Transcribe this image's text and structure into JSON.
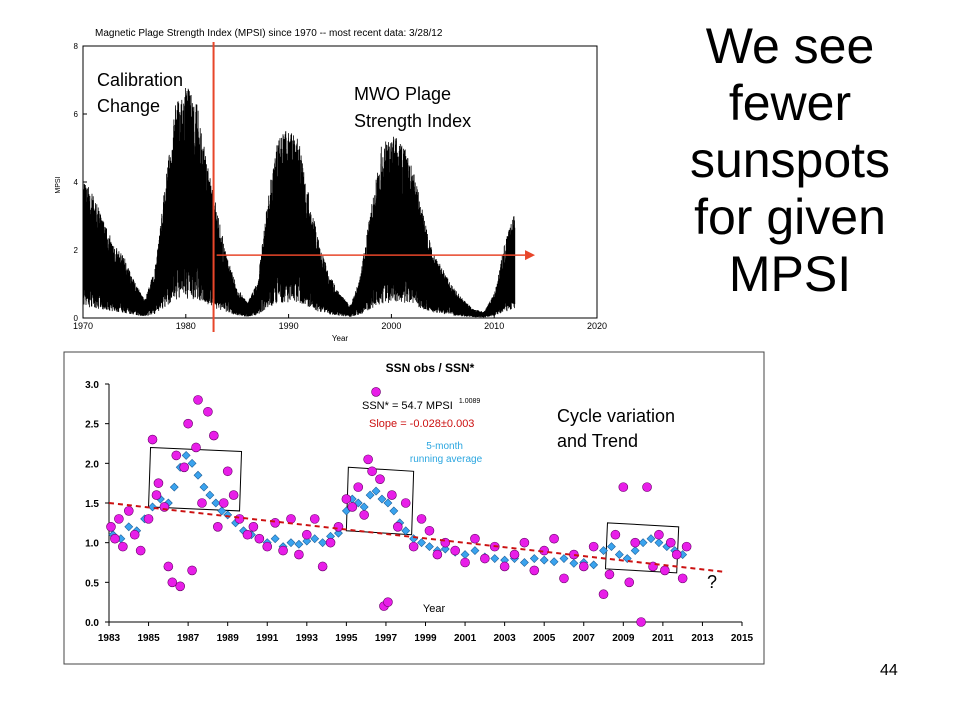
{
  "slide": {
    "title_lines": [
      "We see",
      "fewer",
      "sunspots",
      "for given",
      "MPSI"
    ],
    "page_number": "44"
  },
  "chart_data": [
    {
      "type": "line",
      "title": "Magnetic Plage Strength Index (MPSI) since 1970 -- most recent data: 3/28/12",
      "xlabel": "Year",
      "ylabel": "MPSI",
      "xlim": [
        1970,
        2020
      ],
      "ylim": [
        0,
        8
      ],
      "xticks": [
        "1970",
        "1980",
        "1990",
        "2000",
        "2010",
        "2020"
      ],
      "yticks": [
        "0",
        "2",
        "4",
        "6",
        "8"
      ],
      "grid": false,
      "annotations": {
        "calibration": [
          "Calibration",
          "Change"
        ],
        "plage": [
          "MWO Plage",
          "Strength Index"
        ]
      },
      "calibration_change_year": 1982.7,
      "reference_level": 1.85,
      "reference_line_x": [
        1983,
        2013
      ],
      "series": [
        {
          "x": [
            1970,
            1971,
            1972,
            1973,
            1974,
            1975,
            1976,
            1977,
            1978,
            1979,
            1980,
            1981,
            1982,
            1983,
            1984,
            1985,
            1986,
            1987,
            1988,
            1989,
            1990,
            1991,
            1992,
            1993,
            1994,
            1995,
            1996,
            1997,
            1998,
            1999,
            2000,
            2001,
            2002,
            2003,
            2004,
            2005,
            2006,
            2007,
            2008,
            2009,
            2010,
            2011,
            2012
          ],
          "values": [
            2.3,
            2.0,
            1.6,
            1.2,
            1.0,
            0.6,
            0.3,
            0.8,
            2.2,
            3.5,
            3.8,
            3.6,
            2.6,
            1.8,
            1.0,
            0.5,
            0.25,
            0.6,
            2.0,
            3.0,
            3.1,
            2.9,
            2.0,
            1.2,
            0.7,
            0.4,
            0.2,
            0.7,
            1.8,
            2.8,
            3.0,
            2.9,
            2.5,
            1.8,
            1.1,
            0.8,
            0.5,
            0.3,
            0.15,
            0.1,
            0.4,
            1.2,
            1.8
          ],
          "color": "#000000"
        }
      ],
      "colors": {
        "reference": "#e8462a",
        "calibration": "#e8462a"
      }
    },
    {
      "type": "scatter",
      "title": "SSN obs / SSN*",
      "xlabel": "Year",
      "ylabel": "",
      "xlim": [
        1983,
        2015
      ],
      "ylim": [
        0,
        3
      ],
      "xticks": [
        "1983",
        "1985",
        "1987",
        "1989",
        "1991",
        "1993",
        "1995",
        "1997",
        "1999",
        "2001",
        "2003",
        "2005",
        "2007",
        "2009",
        "2011",
        "2013",
        "2015"
      ],
      "yticks": [
        "0.0",
        "0.5",
        "1.0",
        "1.5",
        "2.0",
        "2.5",
        "3.0"
      ],
      "grid": false,
      "annotations": {
        "formula": "SSN* = 54.7 MPSI",
        "formula_exponent": "1.0089",
        "slope": "Slope = -0.028±0.003",
        "running_average": [
          "5-month",
          "running average"
        ],
        "cycle": [
          "Cycle variation",
          "and Trend"
        ],
        "question": "?"
      },
      "trend": {
        "x": [
          1983,
          2014.2
        ],
        "y": [
          1.5,
          0.63
        ]
      },
      "boxes": [
        {
          "x": [
            1985.1,
            1989.7
          ],
          "y": [
            1.4,
            2.2
          ]
        },
        {
          "x": [
            1995.1,
            1998.4
          ],
          "y": [
            1.1,
            1.95
          ]
        },
        {
          "x": [
            2008.2,
            2011.8
          ],
          "y": [
            0.62,
            1.25
          ]
        }
      ],
      "series": [
        {
          "name": "",
          "color": "#e81ee8",
          "x": [
            1983.1,
            1983.3,
            1983.5,
            1983.7,
            1984.0,
            1984.3,
            1984.6,
            1985.0,
            1985.2,
            1985.4,
            1985.5,
            1985.8,
            1986.0,
            1986.2,
            1986.4,
            1986.6,
            1986.8,
            1987.0,
            1987.2,
            1987.4,
            1987.5,
            1987.7,
            1988.0,
            1988.3,
            1988.5,
            1988.8,
            1989.0,
            1989.3,
            1989.6,
            1990.0,
            1990.3,
            1990.6,
            1991.0,
            1991.4,
            1991.8,
            1992.2,
            1992.6,
            1993.0,
            1993.4,
            1993.8,
            1994.2,
            1994.6,
            1995.0,
            1995.3,
            1995.6,
            1995.9,
            1996.1,
            1996.3,
            1996.5,
            1996.7,
            1996.9,
            1997.1,
            1997.3,
            1997.6,
            1998.0,
            1998.4,
            1998.8,
            1999.2,
            1999.6,
            2000.0,
            2000.5,
            2001.0,
            2001.5,
            2002.0,
            2002.5,
            2003.0,
            2003.5,
            2004.0,
            2004.5,
            2005.0,
            2005.5,
            2006.0,
            2006.5,
            2007.0,
            2007.5,
            2008.0,
            2008.3,
            2008.6,
            2009.0,
            2009.3,
            2009.6,
            2009.9,
            2010.2,
            2010.5,
            2010.8,
            2011.1,
            2011.4,
            2011.7,
            2012.0,
            2012.2
          ],
          "values": [
            1.2,
            1.05,
            1.3,
            0.95,
            1.4,
            1.1,
            0.9,
            1.3,
            2.3,
            1.6,
            1.75,
            1.45,
            0.7,
            0.5,
            2.1,
            0.45,
            1.95,
            2.5,
            0.65,
            2.2,
            2.8,
            1.5,
            2.65,
            2.35,
            1.2,
            1.5,
            1.9,
            1.6,
            1.3,
            1.1,
            1.2,
            1.05,
            0.95,
            1.25,
            0.9,
            1.3,
            0.85,
            1.1,
            1.3,
            0.7,
            1.0,
            1.2,
            1.55,
            1.45,
            1.7,
            1.35,
            2.05,
            1.9,
            2.9,
            1.8,
            0.2,
            0.25,
            1.6,
            1.2,
            1.5,
            0.95,
            1.3,
            1.15,
            0.85,
            1.0,
            0.9,
            0.75,
            1.05,
            0.8,
            0.95,
            0.7,
            0.85,
            1.0,
            0.65,
            0.9,
            1.05,
            0.55,
            0.85,
            0.7,
            0.95,
            0.35,
            0.6,
            1.1,
            1.7,
            0.5,
            1.0,
            0.0,
            1.7,
            0.7,
            1.1,
            0.65,
            1.0,
            0.85,
            0.55,
            0.95
          ],
          "shape": "circle"
        },
        {
          "name": "",
          "color": "#3aa3ee",
          "x": [
            1983.2,
            1983.6,
            1984.0,
            1984.4,
            1984.8,
            1985.2,
            1985.6,
            1986.0,
            1986.3,
            1986.6,
            1986.9,
            1987.2,
            1987.5,
            1987.8,
            1988.1,
            1988.4,
            1988.7,
            1989.0,
            1989.4,
            1989.8,
            1990.2,
            1990.6,
            1991.0,
            1991.4,
            1991.8,
            1992.2,
            1992.6,
            1993.0,
            1993.4,
            1993.8,
            1994.2,
            1994.6,
            1995.0,
            1995.3,
            1995.6,
            1995.9,
            1996.2,
            1996.5,
            1996.8,
            1997.1,
            1997.4,
            1997.7,
            1998.0,
            1998.4,
            1998.8,
            1999.2,
            1999.6,
            2000.0,
            2000.5,
            2001.0,
            2001.5,
            2002.0,
            2002.5,
            2003.0,
            2003.5,
            2004.0,
            2004.5,
            2005.0,
            2005.5,
            2006.0,
            2006.5,
            2007.0,
            2007.5,
            2008.0,
            2008.4,
            2008.8,
            2009.2,
            2009.6,
            2010.0,
            2010.4,
            2010.8,
            2011.2,
            2011.6,
            2012.0
          ],
          "values": [
            1.1,
            1.05,
            1.2,
            1.15,
            1.3,
            1.45,
            1.55,
            1.5,
            1.7,
            1.95,
            2.1,
            2.0,
            1.85,
            1.7,
            1.6,
            1.5,
            1.4,
            1.35,
            1.25,
            1.15,
            1.1,
            1.05,
            1.0,
            1.05,
            0.95,
            1.0,
            0.98,
            1.02,
            1.05,
            1.0,
            1.08,
            1.12,
            1.4,
            1.55,
            1.5,
            1.45,
            1.6,
            1.65,
            1.55,
            1.5,
            1.4,
            1.25,
            1.15,
            1.05,
            1.0,
            0.95,
            0.9,
            0.92,
            0.88,
            0.85,
            0.9,
            0.82,
            0.8,
            0.78,
            0.8,
            0.75,
            0.8,
            0.78,
            0.76,
            0.8,
            0.74,
            0.75,
            0.72,
            0.9,
            0.95,
            0.85,
            0.8,
            0.9,
            1.0,
            1.05,
            1.0,
            0.95,
            0.9,
            0.85
          ],
          "shape": "diamond"
        }
      ],
      "colors": {
        "trend": "#cc1111",
        "slope_text": "#cc1111",
        "running_text": "#2ba6e0",
        "box": "#000000"
      }
    }
  ]
}
